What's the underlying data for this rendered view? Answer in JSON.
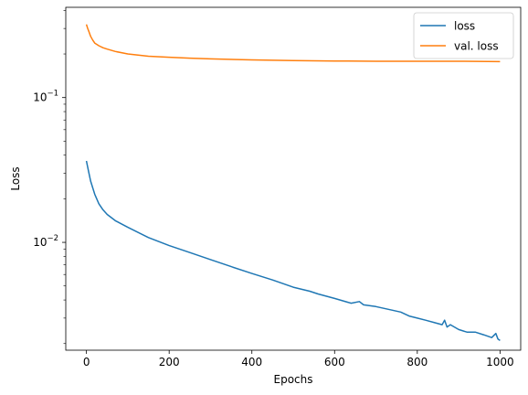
{
  "chart_data": {
    "type": "line",
    "title": "",
    "xlabel": "Epochs",
    "ylabel": "Loss",
    "y_scale": "log",
    "xlim": [
      -50,
      1050
    ],
    "ylim": [
      0.0018,
      0.42
    ],
    "x_ticks": [
      0,
      200,
      400,
      600,
      800,
      1000
    ],
    "x_tick_labels": [
      "0",
      "200",
      "400",
      "600",
      "800",
      "1000"
    ],
    "y_major_ticks": [
      0.01,
      0.1
    ],
    "y_tick_labels": [
      {
        "base": "10",
        "exp": "−2"
      },
      {
        "base": "10",
        "exp": "−1"
      }
    ],
    "grid": false,
    "legend": {
      "position": "top-right"
    },
    "series": [
      {
        "name": "loss",
        "color": "#1f77b4",
        "x": [
          0,
          5,
          10,
          20,
          30,
          40,
          50,
          70,
          100,
          150,
          200,
          250,
          300,
          350,
          400,
          450,
          500,
          540,
          560,
          600,
          640,
          660,
          670,
          700,
          720,
          740,
          760,
          780,
          800,
          820,
          840,
          860,
          866,
          872,
          880,
          900,
          920,
          940,
          960,
          980,
          990,
          995,
          1000
        ],
        "y": [
          0.0365,
          0.031,
          0.0265,
          0.0215,
          0.0185,
          0.0168,
          0.0156,
          0.0141,
          0.0127,
          0.0108,
          0.0095,
          0.0085,
          0.0076,
          0.0068,
          0.0061,
          0.0055,
          0.0049,
          0.0046,
          0.0044,
          0.0041,
          0.0038,
          0.0039,
          0.0037,
          0.0036,
          0.0035,
          0.0034,
          0.0033,
          0.0031,
          0.003,
          0.0029,
          0.0028,
          0.0027,
          0.0029,
          0.0026,
          0.0027,
          0.0025,
          0.0024,
          0.0024,
          0.0023,
          0.0022,
          0.00235,
          0.00215,
          0.0021
        ]
      },
      {
        "name": "val. loss",
        "color": "#ff7f0e",
        "x": [
          0,
          3,
          6,
          10,
          15,
          20,
          30,
          40,
          50,
          70,
          100,
          150,
          200,
          250,
          300,
          400,
          500,
          600,
          700,
          800,
          900,
          1000
        ],
        "y": [
          0.32,
          0.3,
          0.285,
          0.265,
          0.25,
          0.238,
          0.228,
          0.221,
          0.216,
          0.208,
          0.2,
          0.193,
          0.19,
          0.187,
          0.185,
          0.182,
          0.18,
          0.179,
          0.178,
          0.178,
          0.178,
          0.177
        ]
      }
    ]
  }
}
